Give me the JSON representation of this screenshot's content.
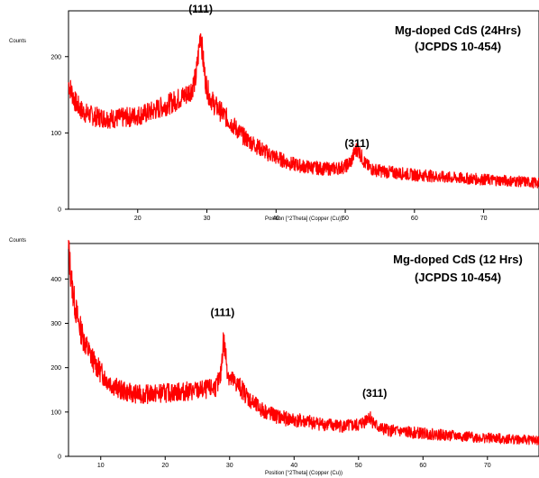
{
  "chart_data": [
    {
      "type": "line",
      "title": "Mg-doped CdS (24Hrs)",
      "subtitle": "(JCPDS 10-454)",
      "xlabel": "Position [°2Theta] (Copper (Cu))",
      "ylabel": "Counts",
      "xlim": [
        10,
        78
      ],
      "ylim": [
        0,
        260
      ],
      "xticks": [
        20,
        30,
        40,
        50,
        60,
        70
      ],
      "yticks": [
        0,
        100,
        200
      ],
      "grid": false,
      "line_color": "#ff0000",
      "annotations": [
        {
          "text": "(111)",
          "x": 29.1,
          "y": 248
        },
        {
          "text": "(311)",
          "x": 51.7,
          "y": 72
        }
      ],
      "series": [
        {
          "x": [
            10,
            11,
            12,
            13,
            14,
            15,
            16,
            17,
            18,
            19,
            20,
            21,
            22,
            23,
            24,
            25,
            26,
            27,
            27.8,
            28.4,
            28.8,
            29.1,
            29.4,
            29.8,
            30.3,
            31,
            32,
            33,
            34,
            35,
            36,
            37,
            38,
            39,
            40,
            41,
            42,
            43,
            44,
            45,
            46,
            47,
            48,
            49,
            50,
            50.8,
            51.4,
            51.8,
            52.3,
            53,
            54,
            56,
            58,
            60,
            62,
            64,
            66,
            68,
            70,
            72,
            74,
            76,
            78
          ],
          "values": [
            165,
            140,
            128,
            124,
            121,
            120,
            119,
            119,
            120,
            121,
            123,
            125,
            128,
            132,
            136,
            140,
            145,
            150,
            158,
            172,
            205,
            235,
            200,
            168,
            150,
            138,
            128,
            118,
            108,
            98,
            90,
            84,
            78,
            72,
            68,
            64,
            60,
            58,
            56,
            55,
            54,
            53,
            53,
            54,
            56,
            62,
            75,
            80,
            70,
            58,
            52,
            49,
            47,
            45,
            44,
            42,
            41,
            40,
            39,
            38,
            37,
            36,
            34
          ]
        }
      ]
    },
    {
      "type": "line",
      "title": "Mg-doped CdS (12 Hrs)",
      "subtitle": "(JCPDS 10-454)",
      "xlabel": "Position [°2Theta] (Copper (Cu))",
      "ylabel": "Counts",
      "xlim": [
        5,
        78
      ],
      "ylim": [
        0,
        480
      ],
      "xticks": [
        10,
        20,
        30,
        40,
        50,
        60,
        70
      ],
      "yticks": [
        0,
        100,
        200,
        300,
        400
      ],
      "grid": false,
      "line_color": "#ff0000",
      "annotations": [
        {
          "text": "(111)",
          "x": 28.9,
          "y": 300
        },
        {
          "text": "(311)",
          "x": 52.5,
          "y": 118
        }
      ],
      "series": [
        {
          "x": [
            5,
            5.3,
            5.6,
            6,
            6.5,
            7,
            7.5,
            8,
            9,
            10,
            11,
            12,
            13,
            14,
            15,
            16,
            17,
            18,
            19,
            20,
            21,
            22,
            23,
            24,
            25,
            26,
            27,
            28,
            28.6,
            29,
            29.3,
            29.7,
            30.2,
            31,
            32,
            33,
            34,
            35,
            36,
            37,
            38,
            40,
            42,
            44,
            46,
            48,
            50,
            51,
            51.6,
            52,
            52.6,
            53.5,
            55,
            57,
            60,
            63,
            66,
            69,
            72,
            75,
            78
          ],
          "values": [
            470,
            420,
            380,
            340,
            305,
            280,
            258,
            240,
            212,
            190,
            172,
            160,
            150,
            145,
            142,
            140,
            140,
            141,
            142,
            143,
            144,
            145,
            146,
            147,
            148,
            150,
            152,
            158,
            180,
            262,
            240,
            190,
            172,
            165,
            150,
            130,
            115,
            105,
            98,
            92,
            87,
            82,
            78,
            74,
            70,
            68,
            70,
            80,
            92,
            84,
            70,
            62,
            58,
            55,
            52,
            48,
            45,
            42,
            40,
            38,
            36
          ]
        }
      ]
    }
  ]
}
